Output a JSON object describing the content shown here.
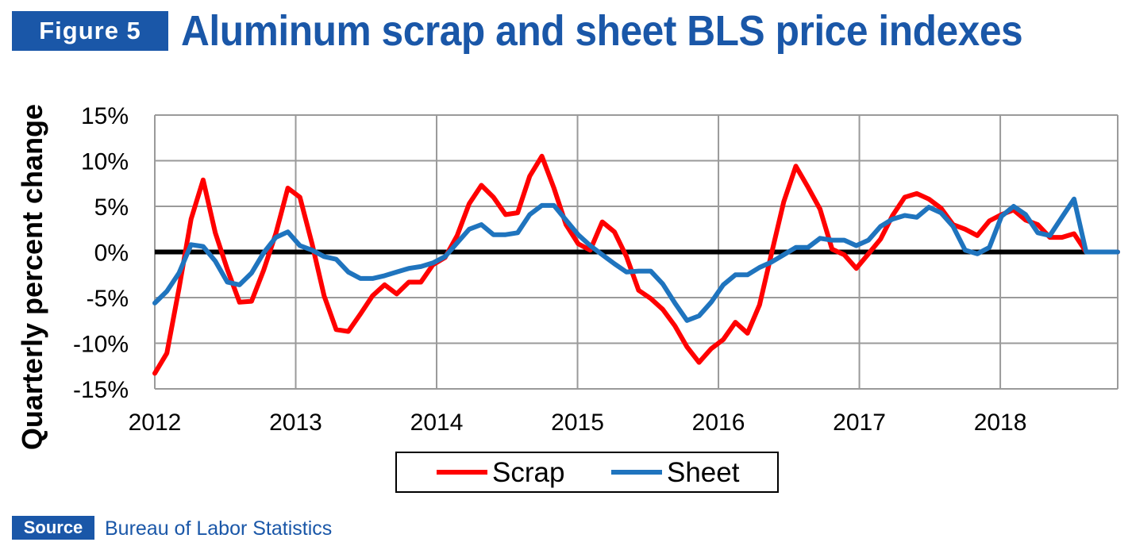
{
  "header": {
    "figure_label": "Figure 5",
    "title": "Aluminum scrap and sheet BLS price indexes"
  },
  "footer": {
    "source_label": "Source",
    "source_text": "Bureau of Labor Statistics"
  },
  "colors": {
    "brand_blue": "#1a57a8",
    "scrap": "#ff0000",
    "sheet": "#1f74be",
    "zero_line": "#000000",
    "grid": "#9a9a9a"
  },
  "chart_data": {
    "type": "line",
    "title": "",
    "xlabel": "",
    "ylabel": "Quarterly percent change",
    "x_start": "2012-01",
    "x_step": "month",
    "xlim": [
      "2012-01",
      "2018-11"
    ],
    "x_ticks": [
      "2012",
      "2013",
      "2014",
      "2015",
      "2016",
      "2017",
      "2018"
    ],
    "ylim": [
      -15,
      15
    ],
    "y_ticks": [
      15,
      10,
      5,
      0,
      -5,
      -10,
      -15
    ],
    "y_tick_labels": [
      "15%",
      "10%",
      "5%",
      "0%",
      "-5%",
      "-10%",
      "-15%"
    ],
    "grid": true,
    "legend_position": "bottom-center",
    "series": [
      {
        "name": "Scrap",
        "color": "#ff0000",
        "values": [
          -13.3,
          -11.1,
          -4.0,
          3.6,
          7.9,
          2.1,
          -1.9,
          -5.5,
          -5.4,
          -2.0,
          2.0,
          7.0,
          6.0,
          0.9,
          -4.8,
          -8.5,
          -8.7,
          -6.8,
          -4.8,
          -3.6,
          -4.6,
          -3.3,
          -3.3,
          -1.4,
          -0.6,
          1.8,
          5.3,
          7.3,
          6.0,
          4.1,
          4.3,
          8.3,
          10.5,
          7.0,
          3.0,
          0.9,
          0.2,
          3.3,
          2.2,
          -0.5,
          -4.2,
          -5.1,
          -6.3,
          -8.1,
          -10.4,
          -12.1,
          -10.6,
          -9.6,
          -7.7,
          -8.9,
          -5.8,
          -0.1,
          5.5,
          9.4,
          7.1,
          4.7,
          0.3,
          -0.3,
          -1.8,
          -0.2,
          1.4,
          4.0,
          6.0,
          6.4,
          5.8,
          4.8,
          3.0,
          2.5,
          1.8,
          3.4,
          4.1,
          4.6,
          3.5,
          3.0,
          1.6,
          1.6,
          2.0,
          0.0,
          0.0,
          0.0,
          0.0,
          0.0,
          0.0
        ],
        "note_range": "partial"
      },
      {
        "name": "Sheet",
        "color": "#1f74be",
        "values": [
          -5.6,
          -4.3,
          -2.3,
          0.8,
          0.6,
          -1.0,
          -3.3,
          -3.6,
          -2.3,
          -0.1,
          1.6,
          2.2,
          0.7,
          0.2,
          -0.5,
          -0.8,
          -2.2,
          -2.9,
          -2.9,
          -2.6,
          -2.2,
          -1.8,
          -1.6,
          -1.2,
          -0.5,
          1.0,
          2.5,
          3.0,
          1.9,
          1.9,
          2.1,
          4.1,
          5.1,
          5.1,
          3.5,
          1.9,
          0.7,
          -0.3,
          -1.3,
          -2.2,
          -2.1,
          -2.1,
          -3.5,
          -5.6,
          -7.5,
          -7.0,
          -5.5,
          -3.6,
          -2.5,
          -2.5,
          -1.7,
          -1.1,
          -0.3,
          0.5,
          0.5,
          1.5,
          1.3,
          1.3,
          0.7,
          1.3,
          2.8,
          3.6,
          4.0,
          3.8,
          4.9,
          4.3,
          2.8,
          0.2,
          -0.2,
          0.5,
          3.9,
          5.0,
          4.1,
          2.1,
          1.8,
          3.8,
          5.8,
          0.0,
          0.0,
          0.0,
          0.0,
          0.0,
          0.0
        ]
      }
    ]
  }
}
